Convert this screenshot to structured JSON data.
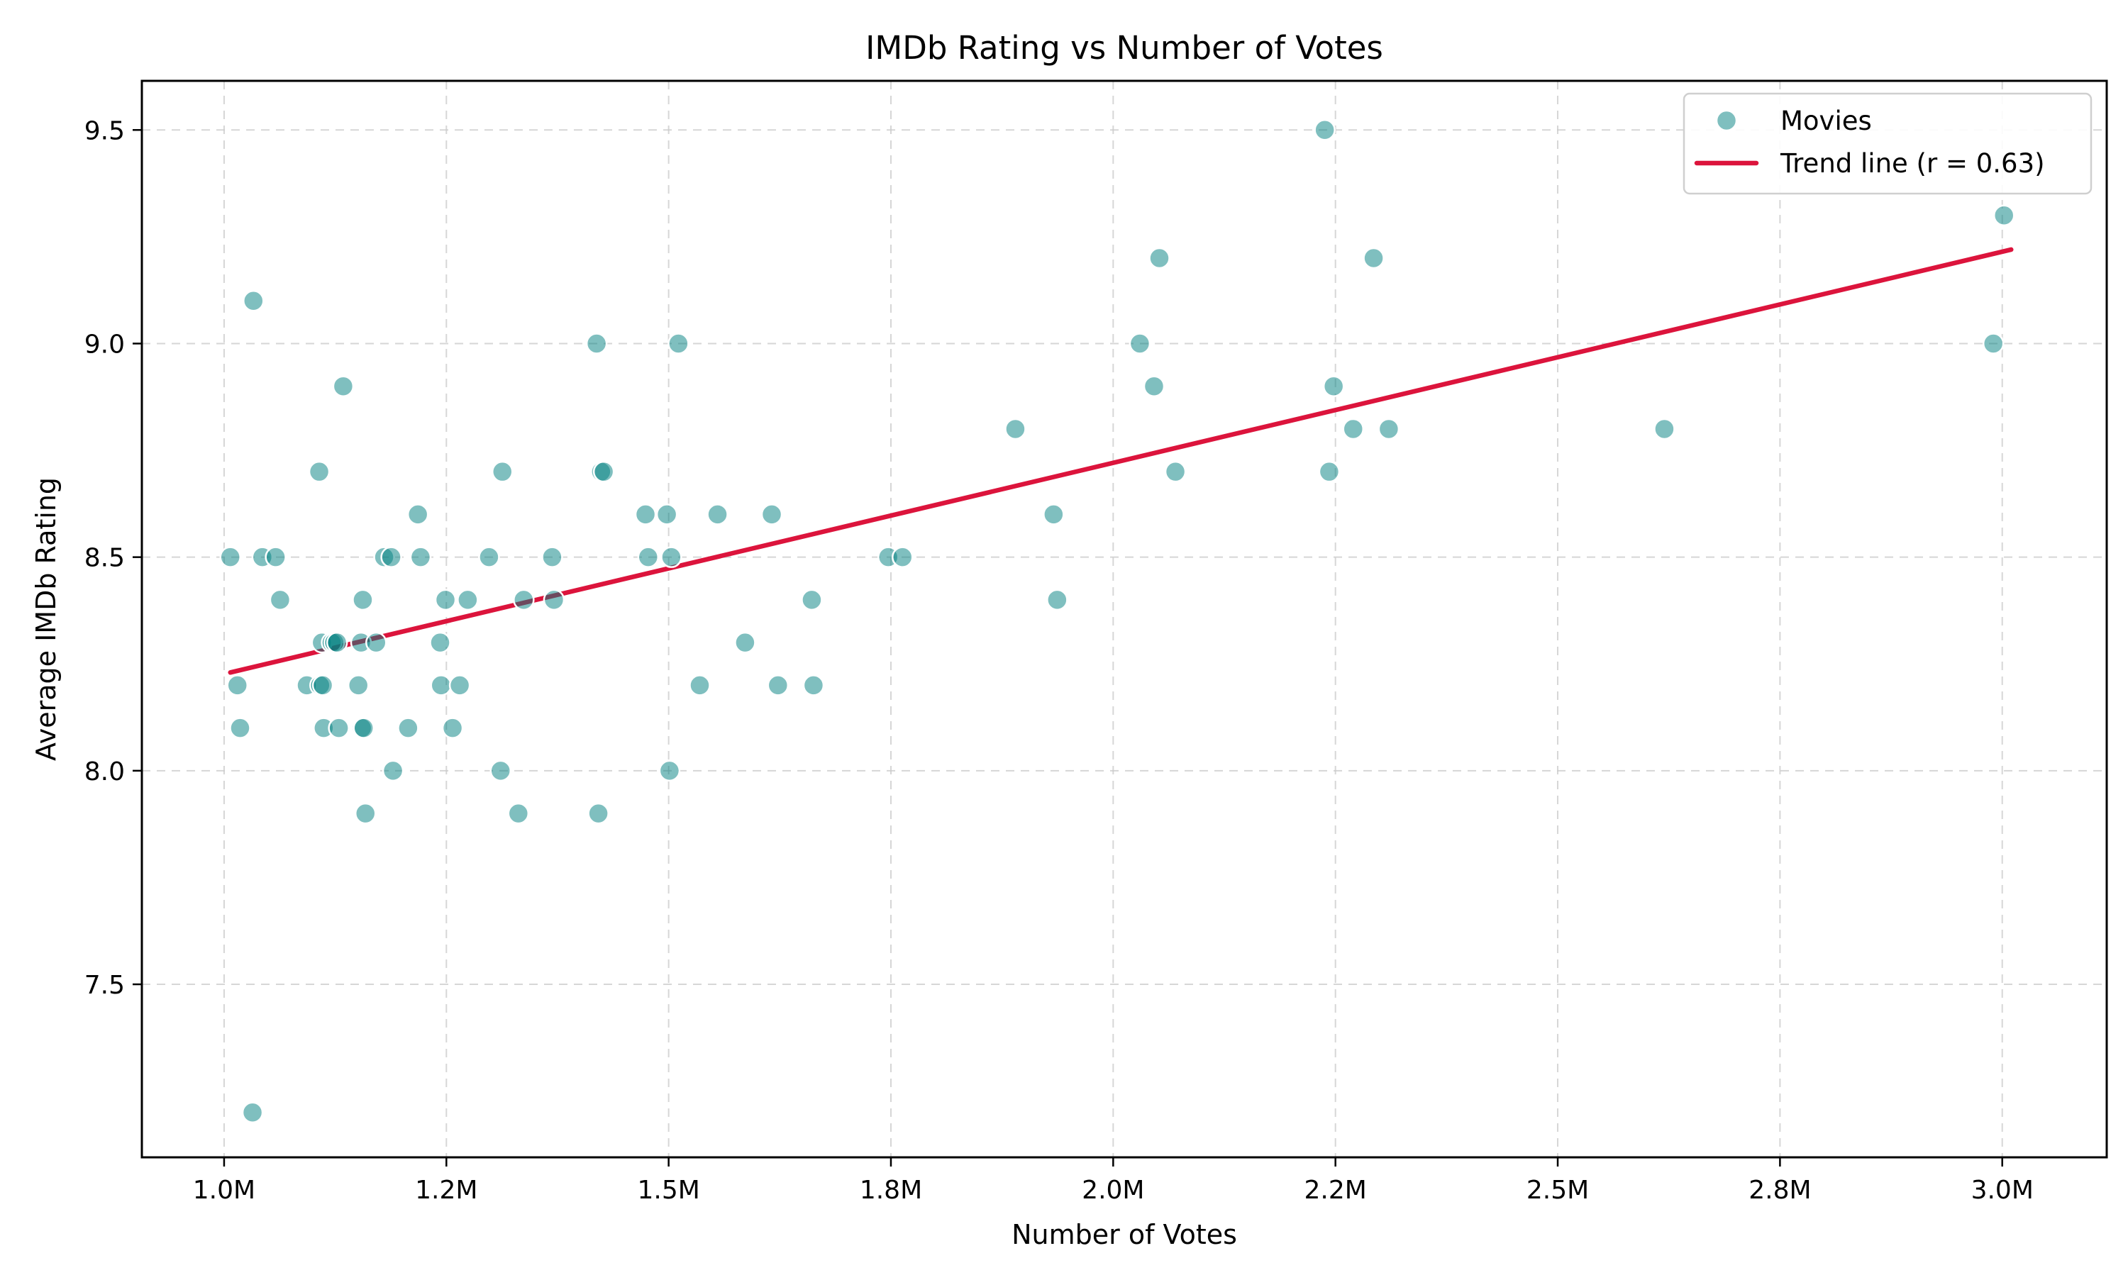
{
  "chart_data": {
    "type": "scatter",
    "title": "IMDb Rating vs Number of Votes",
    "xlabel": "Number of Votes",
    "ylabel": "Average IMDb Rating",
    "xlim": [
      907500,
      3117500
    ],
    "ylim": [
      7.095,
      9.615
    ],
    "x_ticks": [
      {
        "value": 1000000,
        "label": "1.0M"
      },
      {
        "value": 1250000,
        "label": "1.2M"
      },
      {
        "value": 1500000,
        "label": "1.5M"
      },
      {
        "value": 1750000,
        "label": "1.8M"
      },
      {
        "value": 2000000,
        "label": "2.0M"
      },
      {
        "value": 2250000,
        "label": "2.2M"
      },
      {
        "value": 2500000,
        "label": "2.5M"
      },
      {
        "value": 2750000,
        "label": "2.8M"
      },
      {
        "value": 3000000,
        "label": "3.0M"
      }
    ],
    "y_ticks": [
      {
        "value": 7.5,
        "label": "7.5"
      },
      {
        "value": 8.0,
        "label": "8.0"
      },
      {
        "value": 8.5,
        "label": "8.5"
      },
      {
        "value": 9.0,
        "label": "9.0"
      },
      {
        "value": 9.5,
        "label": "9.5"
      }
    ],
    "grid": true,
    "legend_position": "top-right",
    "series": [
      {
        "name": "Movies",
        "kind": "scatter",
        "color": "#008080",
        "points": [
          [
            1007000,
            8.5
          ],
          [
            1015000,
            8.2
          ],
          [
            1018000,
            8.1
          ],
          [
            1033000,
            9.1
          ],
          [
            1032000,
            7.2
          ],
          [
            1043000,
            8.5
          ],
          [
            1058000,
            8.5
          ],
          [
            1063000,
            8.4
          ],
          [
            1093000,
            8.2
          ],
          [
            1107000,
            8.7
          ],
          [
            1108000,
            8.2
          ],
          [
            1110000,
            8.3
          ],
          [
            1111000,
            8.2
          ],
          [
            1112000,
            8.1
          ],
          [
            1121000,
            8.3
          ],
          [
            1124000,
            8.3
          ],
          [
            1127000,
            8.3
          ],
          [
            1129000,
            8.1
          ],
          [
            1134000,
            8.9
          ],
          [
            1151000,
            8.2
          ],
          [
            1154000,
            8.3
          ],
          [
            1155000,
            8.1
          ],
          [
            1156000,
            8.4
          ],
          [
            1157000,
            8.1
          ],
          [
            1159000,
            7.9
          ],
          [
            1171000,
            8.3
          ],
          [
            1180000,
            8.5
          ],
          [
            1188000,
            8.5
          ],
          [
            1190000,
            8.0
          ],
          [
            1207000,
            8.1
          ],
          [
            1218000,
            8.6
          ],
          [
            1221000,
            8.5
          ],
          [
            1243000,
            8.3
          ],
          [
            1244000,
            8.2
          ],
          [
            1249000,
            8.4
          ],
          [
            1257000,
            8.1
          ],
          [
            1265000,
            8.2
          ],
          [
            1274000,
            8.4
          ],
          [
            1298000,
            8.5
          ],
          [
            1311000,
            8.0
          ],
          [
            1313000,
            8.7
          ],
          [
            1331000,
            7.9
          ],
          [
            1337000,
            8.4
          ],
          [
            1369000,
            8.5
          ],
          [
            1371000,
            8.4
          ],
          [
            1419000,
            9.0
          ],
          [
            1421000,
            7.9
          ],
          [
            1424000,
            8.7
          ],
          [
            1427000,
            8.7
          ],
          [
            1474000,
            8.6
          ],
          [
            1477000,
            8.5
          ],
          [
            1498000,
            8.6
          ],
          [
            1501000,
            8.0
          ],
          [
            1503000,
            8.5
          ],
          [
            1511000,
            9.0
          ],
          [
            1535000,
            8.2
          ],
          [
            1555000,
            8.6
          ],
          [
            1586000,
            8.3
          ],
          [
            1616000,
            8.6
          ],
          [
            1623000,
            8.2
          ],
          [
            1661000,
            8.4
          ],
          [
            1663000,
            8.2
          ],
          [
            1747000,
            8.5
          ],
          [
            1763000,
            8.5
          ],
          [
            1890000,
            8.8
          ],
          [
            1933000,
            8.6
          ],
          [
            1937000,
            8.4
          ],
          [
            2030000,
            9.0
          ],
          [
            2046000,
            8.9
          ],
          [
            2052000,
            9.2
          ],
          [
            2070000,
            8.7
          ],
          [
            2238000,
            9.5
          ],
          [
            2243000,
            8.7
          ],
          [
            2248000,
            8.9
          ],
          [
            2270000,
            8.8
          ],
          [
            2293000,
            9.2
          ],
          [
            2310000,
            8.8
          ],
          [
            2620000,
            8.8
          ],
          [
            2990000,
            9.0
          ],
          [
            3002000,
            9.3
          ]
        ]
      },
      {
        "name": "Trend line (r = 0.63)",
        "kind": "line",
        "color": "#DC143C",
        "points": [
          [
            1007000,
            8.23
          ],
          [
            3010000,
            9.22
          ]
        ]
      }
    ]
  }
}
